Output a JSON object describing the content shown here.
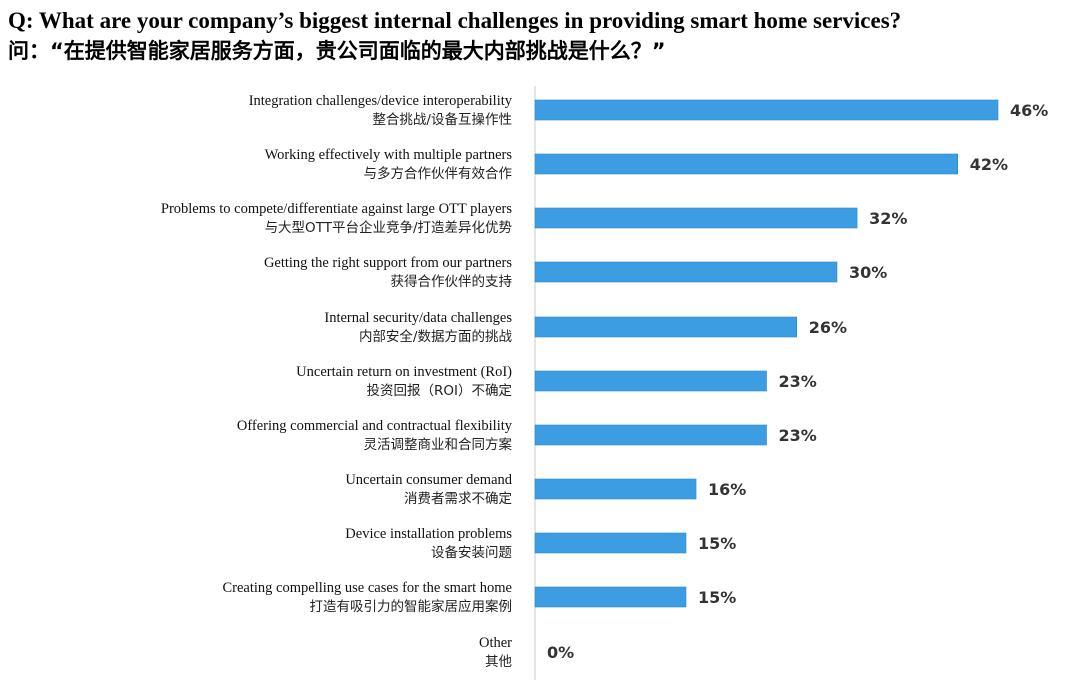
{
  "heading": {
    "question_en": "Q: What are your company’s biggest internal challenges in providing smart home services?",
    "question_zh": "问：“在提供智能家居服务方面，贵公司面临的最大内部挑战是什么？”"
  },
  "colors": {
    "bar": "#3d9de2",
    "bar_edge": "#2f86c6",
    "axis": "#c8c8c8"
  },
  "chart_data": {
    "type": "bar",
    "orientation": "horizontal",
    "categories": [
      {
        "en": "Integration challenges/device interoperability",
        "zh": "整合挑战/设备互操作性"
      },
      {
        "en": "Working effectively with multiple partners",
        "zh": "与多方合作伙伴有效合作"
      },
      {
        "en": "Problems to compete/differentiate against large OTT players",
        "zh": "与大型OTT平台企业竞争/打造差异化优势"
      },
      {
        "en": "Getting the right support from our partners",
        "zh": "获得合作伙伴的支持"
      },
      {
        "en": "Internal security/data challenges",
        "zh": "内部安全/数据方面的挑战"
      },
      {
        "en": "Uncertain return on investment (RoI)",
        "zh": "投资回报（ROI）不确定"
      },
      {
        "en": "Offering commercial and contractual flexibility",
        "zh": "灵活调整商业和合同方案"
      },
      {
        "en": "Uncertain consumer demand",
        "zh": "消费者需求不确定"
      },
      {
        "en": "Device installation problems",
        "zh": "设备安装问题"
      },
      {
        "en": "Creating compelling use cases for the smart home",
        "zh": "打造有吸引力的智能家居应用案例"
      },
      {
        "en": "Other",
        "zh": "其他"
      }
    ],
    "values": [
      46,
      42,
      32,
      30,
      26,
      23,
      23,
      16,
      15,
      15,
      0
    ],
    "value_labels": [
      "46%",
      "42%",
      "32%",
      "30%",
      "26%",
      "23%",
      "23%",
      "16%",
      "15%",
      "15%",
      "0%"
    ],
    "unit": "%",
    "xlim": [
      0,
      46
    ],
    "grid": false,
    "legend": "none"
  }
}
